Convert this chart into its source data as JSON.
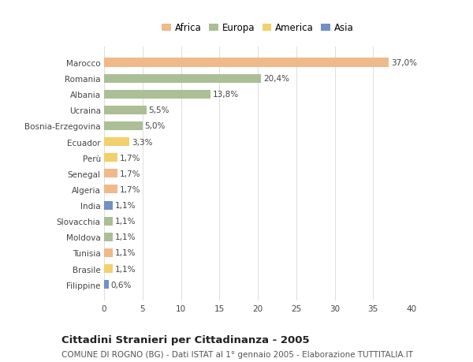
{
  "countries": [
    "Marocco",
    "Romania",
    "Albania",
    "Ucraina",
    "Bosnia-Erzegovina",
    "Ecuador",
    "Perù",
    "Senegal",
    "Algeria",
    "India",
    "Slovacchia",
    "Moldova",
    "Tunisia",
    "Brasile",
    "Filippine"
  ],
  "values": [
    37.0,
    20.4,
    13.8,
    5.5,
    5.0,
    3.3,
    1.7,
    1.7,
    1.7,
    1.1,
    1.1,
    1.1,
    1.1,
    1.1,
    0.6
  ],
  "labels": [
    "37,0%",
    "20,4%",
    "13,8%",
    "5,5%",
    "5,0%",
    "3,3%",
    "1,7%",
    "1,7%",
    "1,7%",
    "1,1%",
    "1,1%",
    "1,1%",
    "1,1%",
    "1,1%",
    "0,6%"
  ],
  "continents": [
    "Africa",
    "Europa",
    "Europa",
    "Europa",
    "Europa",
    "America",
    "America",
    "Africa",
    "Africa",
    "Asia",
    "Europa",
    "Europa",
    "Africa",
    "America",
    "Asia"
  ],
  "colors": {
    "Africa": "#F0B98A",
    "Europa": "#ABBE96",
    "America": "#F2D06B",
    "Asia": "#7090C8"
  },
  "legend_order": [
    "Africa",
    "Europa",
    "America",
    "Asia"
  ],
  "xlim": [
    0,
    40
  ],
  "xticks": [
    0,
    5,
    10,
    15,
    20,
    25,
    30,
    35,
    40
  ],
  "title": "Cittadini Stranieri per Cittadinanza - 2005",
  "subtitle": "COMUNE DI ROGNO (BG) - Dati ISTAT al 1° gennaio 2005 - Elaborazione TUTTITALIA.IT",
  "bg_color": "#ffffff",
  "bar_height": 0.55,
  "label_fontsize": 7.5,
  "tick_fontsize": 7.5,
  "title_fontsize": 9.5,
  "subtitle_fontsize": 7.5
}
